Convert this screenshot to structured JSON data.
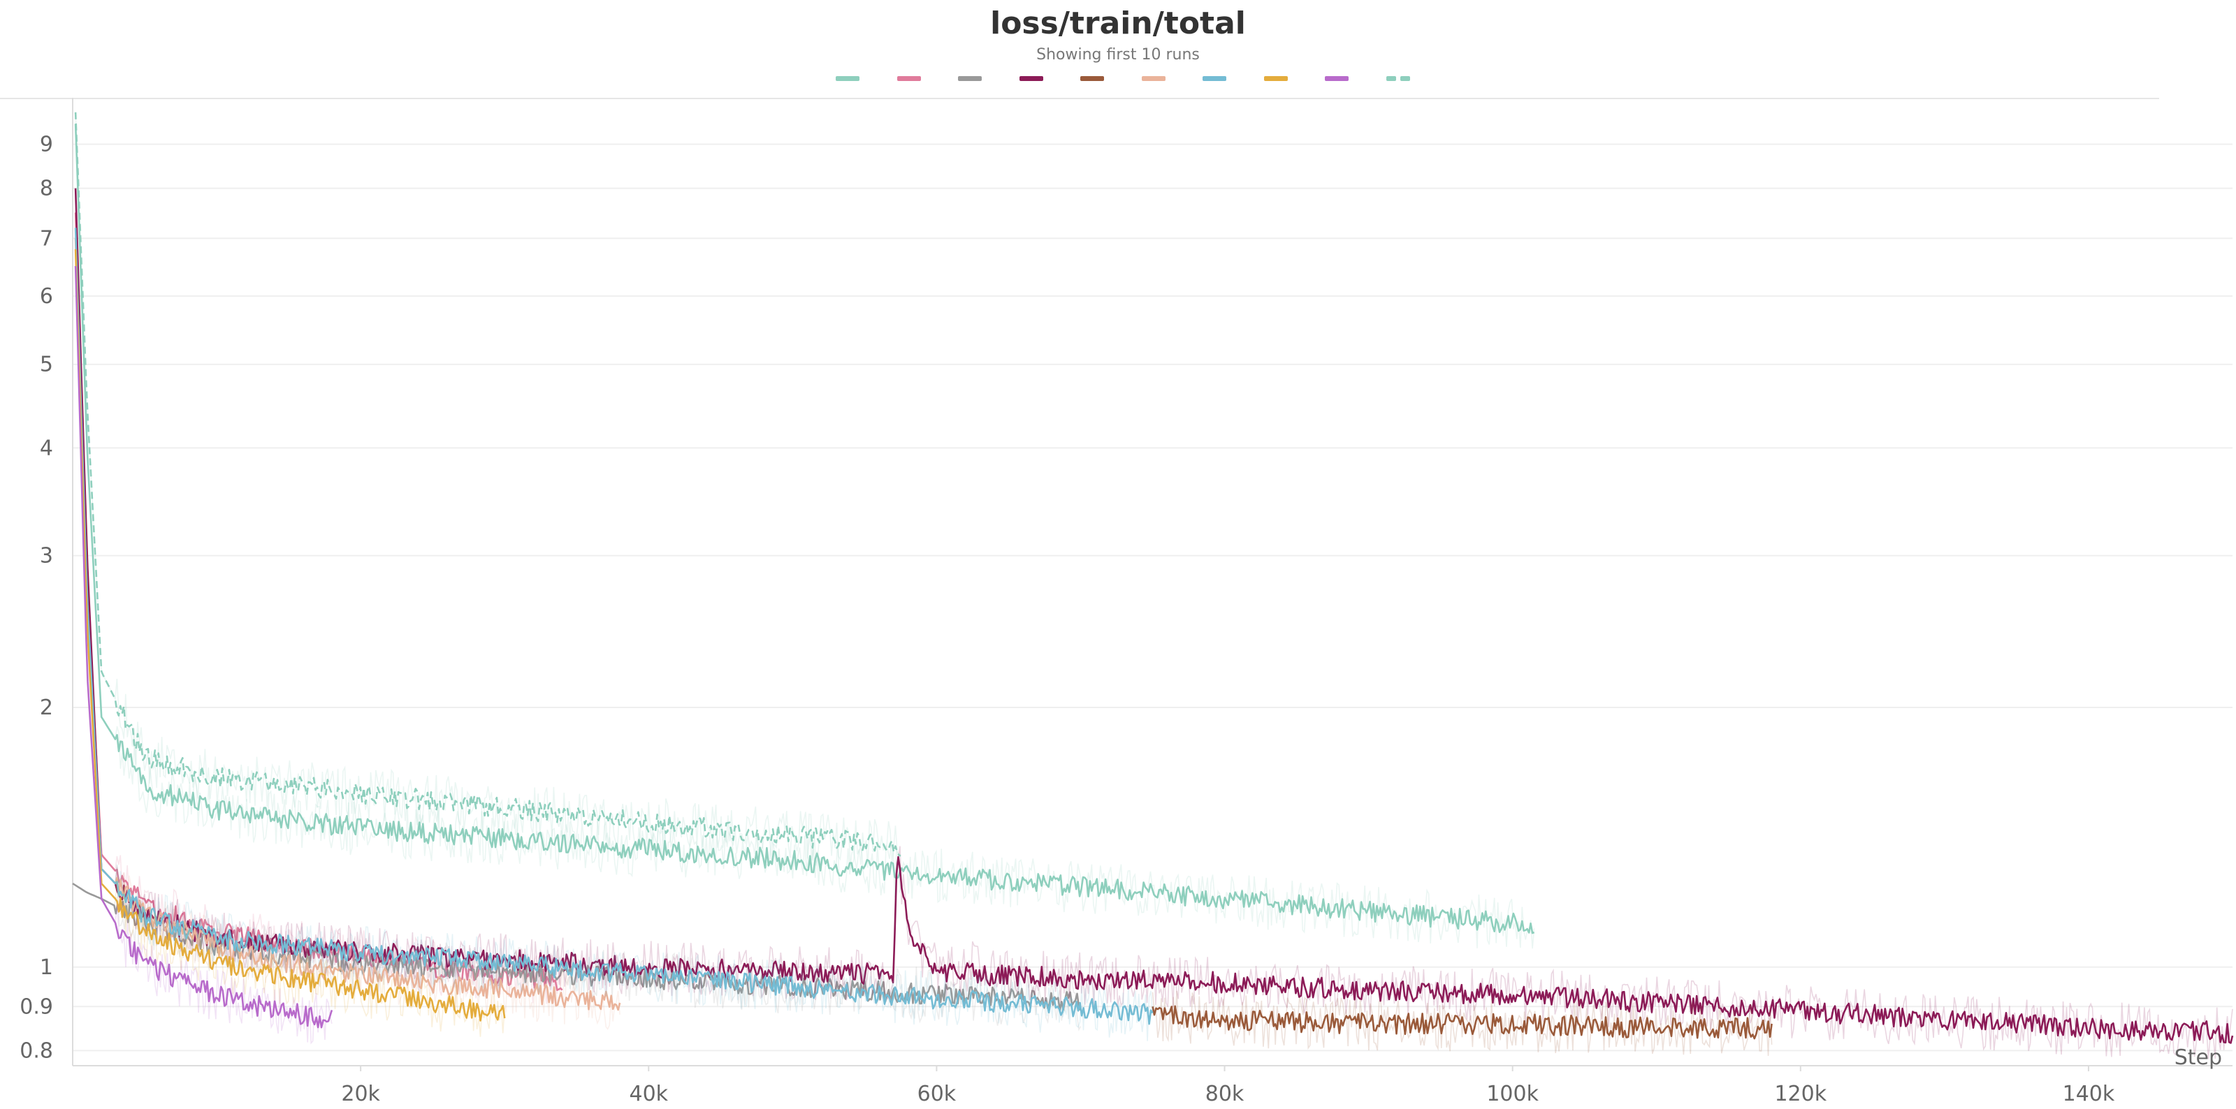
{
  "chart_data": {
    "type": "line",
    "title": "loss/train/total",
    "subtitle": "Showing first 10 runs",
    "xlabel": "Step",
    "ylabel": "",
    "y_scale": "log",
    "xlim": [
      0,
      150000
    ],
    "ylim": [
      0.78,
      10
    ],
    "x_ticks": [
      20000,
      40000,
      60000,
      80000,
      100000,
      120000,
      140000
    ],
    "x_tick_labels": [
      "20k",
      "40k",
      "60k",
      "80k",
      "100k",
      "120k",
      "140k"
    ],
    "y_ticks": [
      0.8,
      0.9,
      1,
      2,
      3,
      4,
      5,
      6,
      7,
      8,
      9
    ],
    "y_tick_labels": [
      "0.8",
      "0.9",
      "1",
      "2",
      "3",
      "4",
      "5",
      "6",
      "7",
      "8",
      "9"
    ],
    "grid": true,
    "legend_placement": "top-center",
    "series": [
      {
        "color": "#8ecfbd",
        "dashed": false,
        "x": [
          200,
          1000,
          2000,
          5000,
          10000,
          20000,
          30000,
          40000,
          50000,
          60000,
          70000,
          80000,
          90000,
          101500
        ],
        "y": [
          9.5,
          4.0,
          1.95,
          1.62,
          1.52,
          1.45,
          1.41,
          1.37,
          1.33,
          1.28,
          1.24,
          1.2,
          1.16,
          1.12
        ]
      },
      {
        "color": "#e07b9b",
        "dashed": false,
        "x": [
          200,
          1000,
          2000,
          5000,
          10000,
          15000,
          20000,
          25000,
          30000,
          34000
        ],
        "y": [
          7.5,
          2.8,
          1.35,
          1.18,
          1.1,
          1.06,
          1.03,
          1.0,
          0.98,
          0.96
        ]
      },
      {
        "color": "#999999",
        "dashed": false,
        "x": [
          0,
          1000,
          2000,
          5000,
          10000,
          20000,
          30000,
          40000,
          50000,
          60000,
          70000
        ],
        "y": [
          1.25,
          1.22,
          1.2,
          1.13,
          1.06,
          1.01,
          0.99,
          0.97,
          0.95,
          0.93,
          0.91
        ]
      },
      {
        "color": "#8c1b57",
        "dashed": false,
        "x": [
          200,
          1000,
          2000,
          5000,
          10000,
          20000,
          30000,
          40000,
          50000,
          57000,
          57300,
          58000,
          60000,
          62000,
          62200,
          63000,
          70000,
          80000,
          90000,
          100000,
          110000,
          120000,
          130000,
          140000,
          150000
        ],
        "y": [
          8.0,
          3.0,
          1.3,
          1.15,
          1.08,
          1.04,
          1.02,
          1.0,
          0.99,
          0.98,
          1.38,
          1.1,
          0.99,
          0.98,
          1.01,
          0.98,
          0.97,
          0.96,
          0.94,
          0.93,
          0.91,
          0.89,
          0.87,
          0.85,
          0.84
        ]
      },
      {
        "color": "#9a5a3a",
        "dashed": false,
        "x": [
          75000,
          80000,
          90000,
          100000,
          110000,
          118000
        ],
        "y": [
          0.88,
          0.87,
          0.86,
          0.86,
          0.85,
          0.85
        ]
      },
      {
        "color": "#eab39a",
        "dashed": false,
        "x": [
          200,
          1000,
          2000,
          5000,
          10000,
          15000,
          20000,
          25000,
          30000,
          35000,
          38000
        ],
        "y": [
          7.0,
          2.6,
          1.3,
          1.15,
          1.06,
          1.01,
          0.98,
          0.96,
          0.94,
          0.92,
          0.91
        ]
      },
      {
        "color": "#74bcd4",
        "dashed": false,
        "x": [
          200,
          1000,
          2000,
          5000,
          10000,
          20000,
          30000,
          40000,
          50000,
          60000,
          70000,
          75000
        ],
        "y": [
          7.2,
          2.7,
          1.3,
          1.15,
          1.08,
          1.04,
          1.01,
          0.98,
          0.95,
          0.92,
          0.9,
          0.88
        ]
      },
      {
        "color": "#e4ac3c",
        "dashed": false,
        "x": [
          200,
          1000,
          2000,
          5000,
          10000,
          15000,
          20000,
          25000,
          30000
        ],
        "y": [
          6.8,
          2.5,
          1.25,
          1.1,
          1.01,
          0.97,
          0.94,
          0.91,
          0.88
        ]
      },
      {
        "color": "#b86bcb",
        "dashed": false,
        "x": [
          200,
          1000,
          2000,
          4000,
          6000,
          8000,
          10000,
          12000,
          14000,
          16000,
          18000
        ],
        "y": [
          6.5,
          2.2,
          1.2,
          1.05,
          0.99,
          0.96,
          0.93,
          0.91,
          0.89,
          0.88,
          0.87
        ]
      },
      {
        "color": "#8ecfbd",
        "dashed": true,
        "x": [
          200,
          1000,
          2000,
          5000,
          10000,
          20000,
          30000,
          40000,
          50000,
          57500
        ],
        "y": [
          9.8,
          4.5,
          2.2,
          1.75,
          1.66,
          1.59,
          1.53,
          1.47,
          1.42,
          1.38
        ]
      }
    ]
  }
}
